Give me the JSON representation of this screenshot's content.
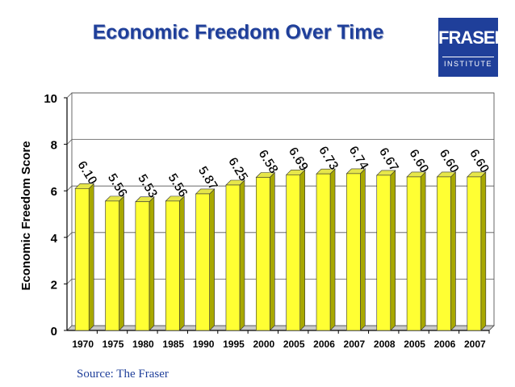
{
  "logo": {
    "name": "FRASER",
    "sub": "INSTITUTE"
  },
  "source": "Source: The Fraser",
  "colors": {
    "title": "#1f3f9a",
    "bar": "#ffff33",
    "bar_side": "#a8a800",
    "bar_top": "#e6e64a",
    "logo_bg": "#1f3f9a"
  },
  "chart_data": {
    "type": "bar",
    "title": "Economic Freedom Over Time",
    "xlabel": "",
    "ylabel": "Economic Freedom Score",
    "categories": [
      "1970",
      "1975",
      "1980",
      "1985",
      "1990",
      "1995",
      "2000",
      "2005",
      "2006",
      "2007",
      "2008",
      "2005",
      "2006",
      "2007"
    ],
    "values": [
      6.1,
      5.56,
      5.53,
      5.56,
      5.87,
      6.25,
      6.58,
      6.69,
      6.73,
      6.74,
      6.67,
      6.6,
      6.6,
      6.6
    ],
    "labels": [
      "6.10",
      "5.56",
      "5.53",
      "5.56",
      "5.87",
      "6.25",
      "6.58",
      "6.69",
      "6.73",
      "6.74",
      "6.67",
      "6.60",
      "6.60",
      "6.60"
    ],
    "ylim": [
      0,
      10
    ],
    "yticks": [
      "0",
      "2",
      "4",
      "6",
      "8",
      "10"
    ],
    "grid": true,
    "legend": "none"
  }
}
